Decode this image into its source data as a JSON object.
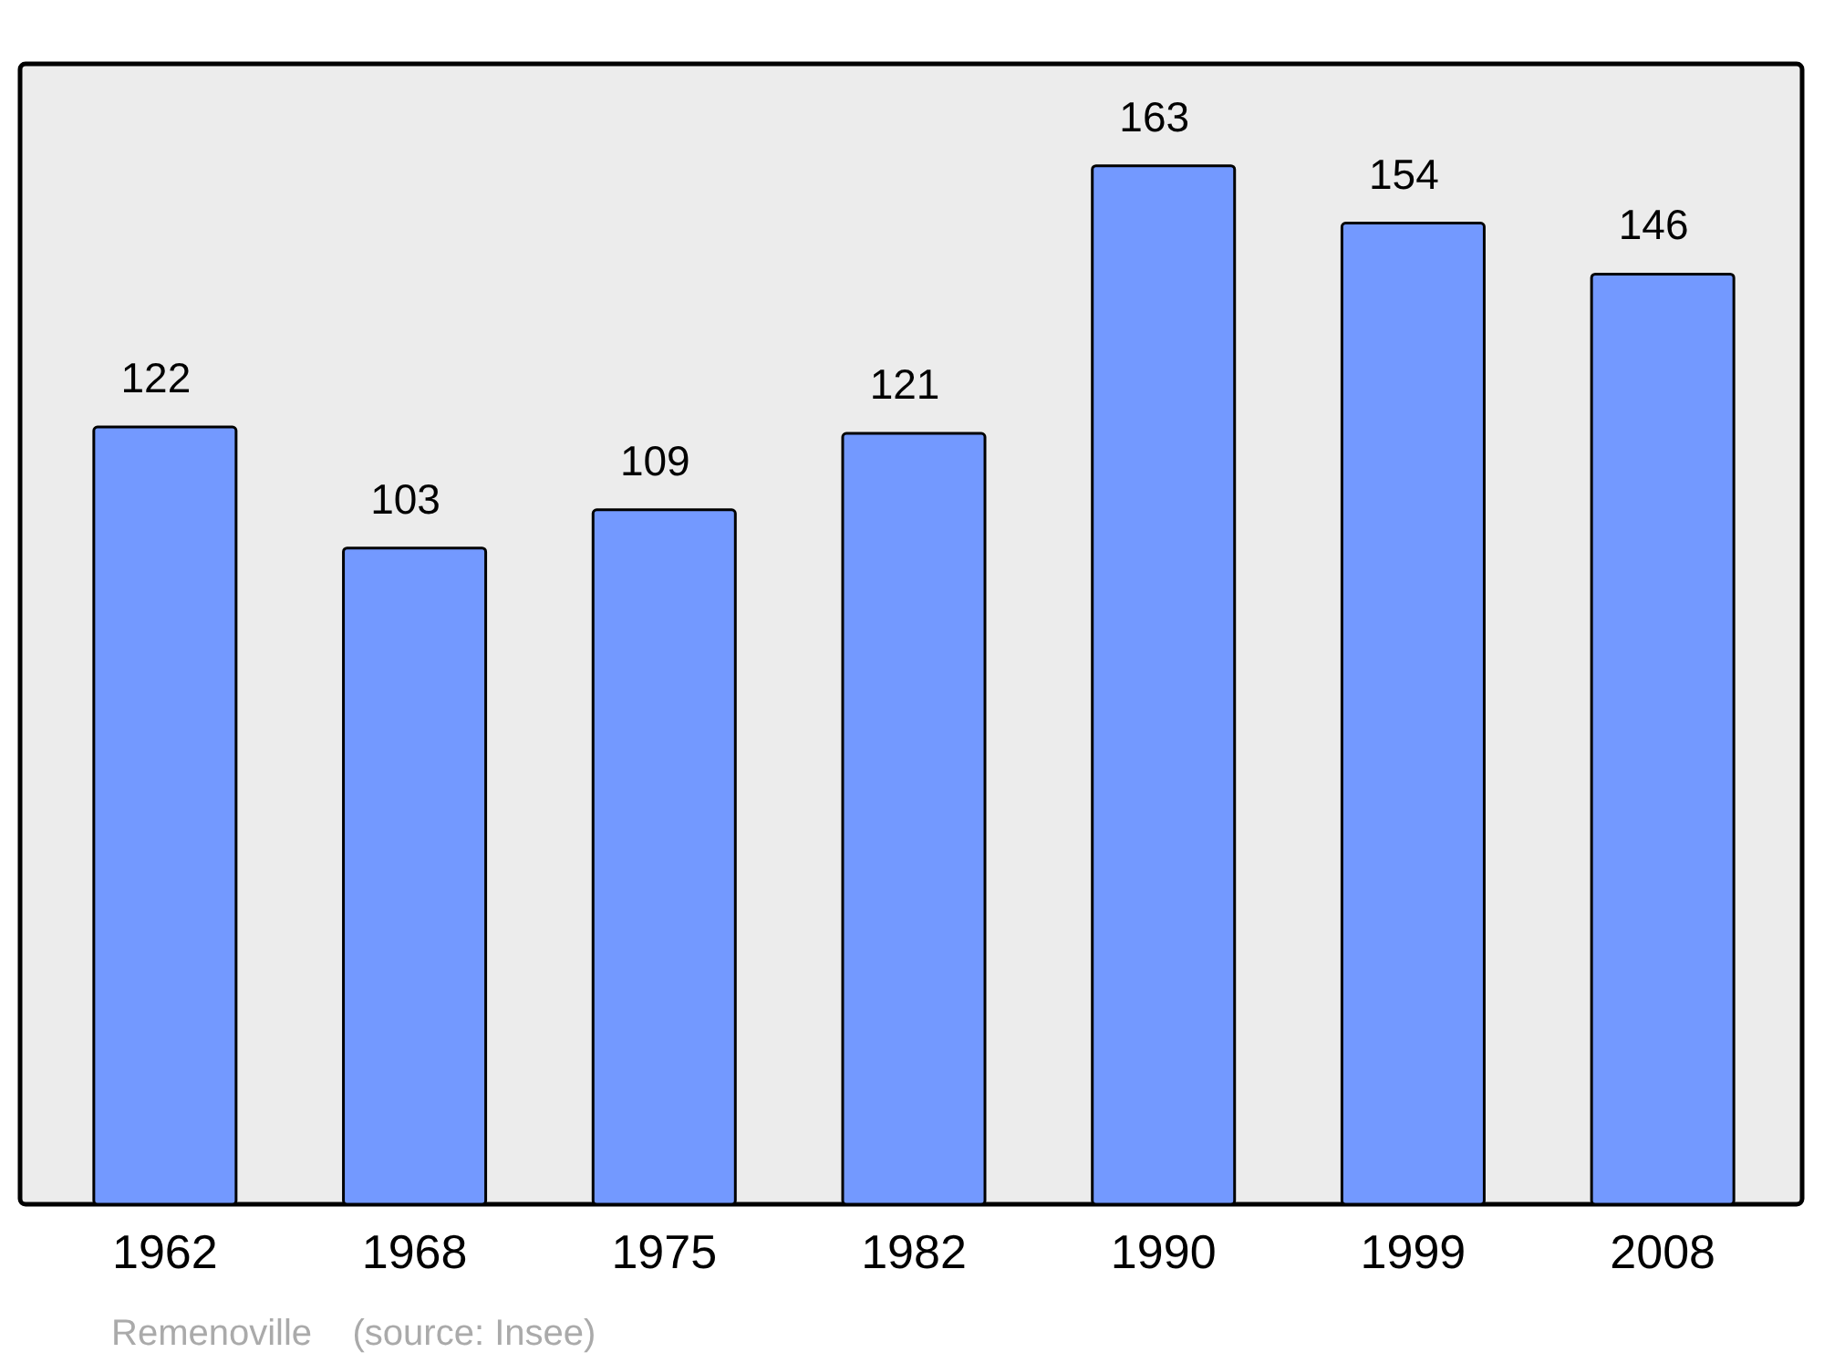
{
  "chart_data": {
    "type": "bar",
    "categories": [
      "1962",
      "1968",
      "1975",
      "1982",
      "1990",
      "1999",
      "2008"
    ],
    "values": [
      122,
      103,
      109,
      121,
      163,
      154,
      146
    ],
    "color": "#7399ff",
    "ylim": [
      0,
      179
    ],
    "data_labels": true,
    "grid": false,
    "tick_labels": "x",
    "annotations": [
      "Remenoville    (source: Insee)"
    ]
  }
}
